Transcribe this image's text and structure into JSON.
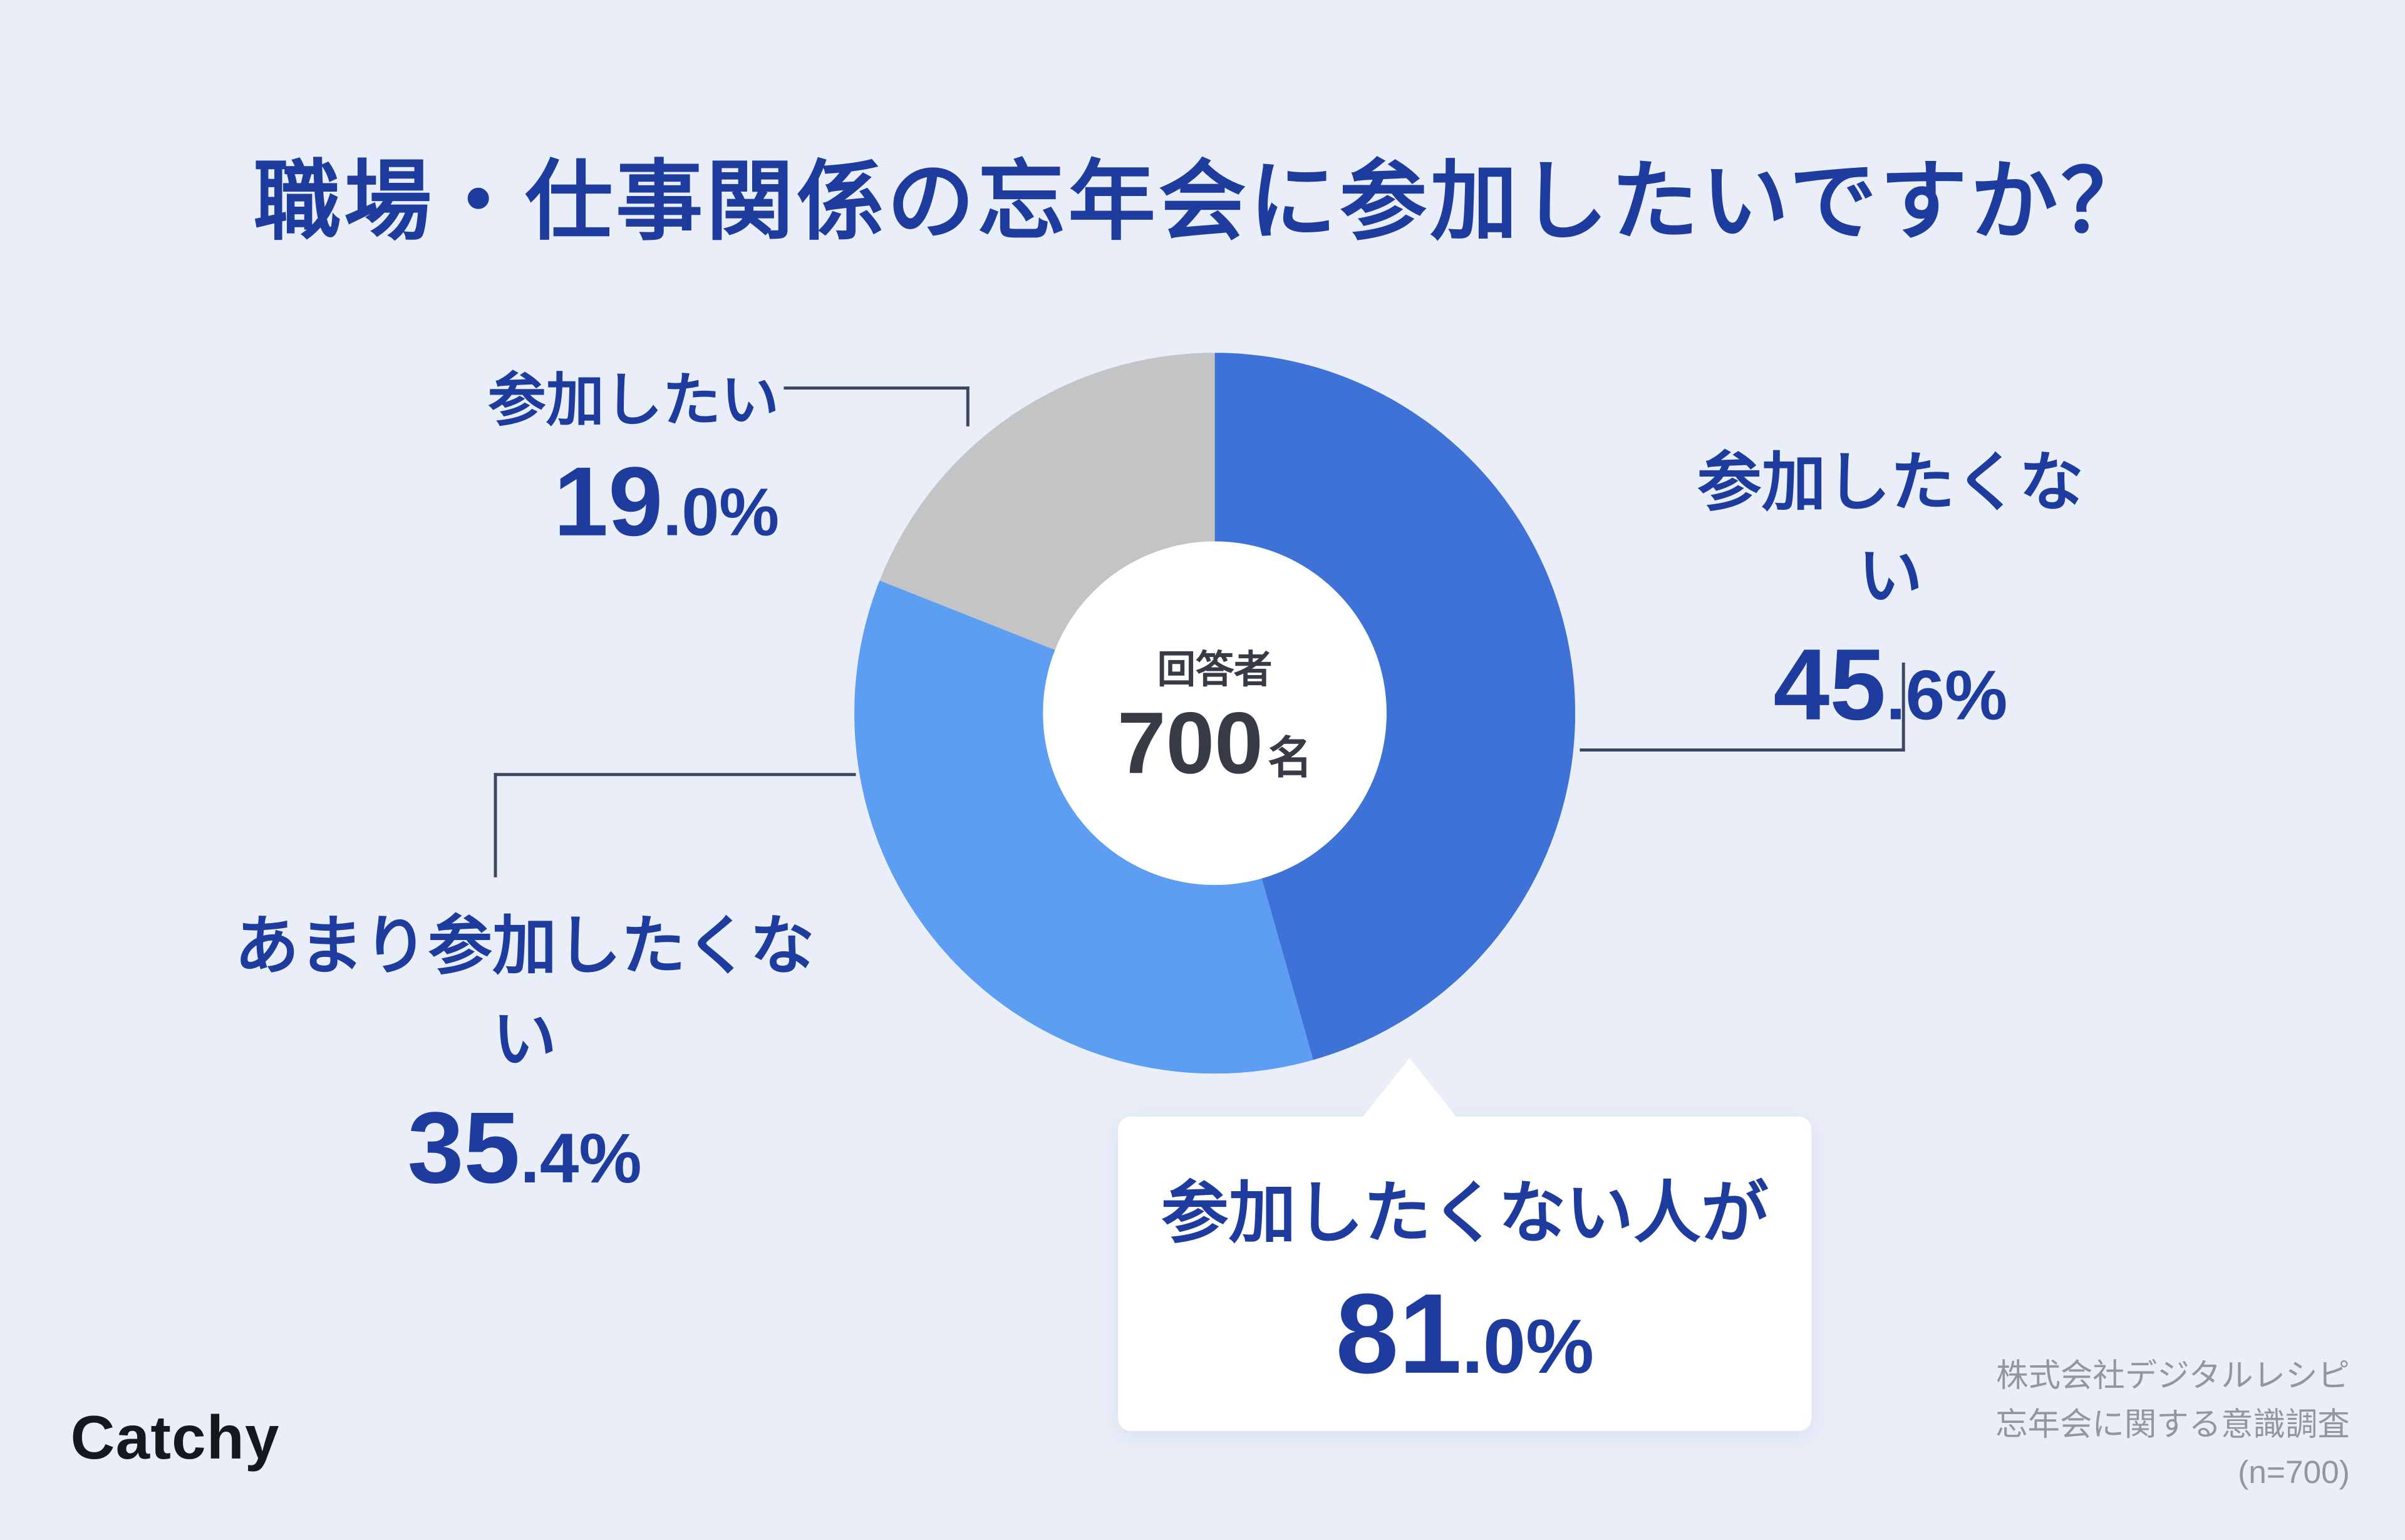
{
  "page": {
    "background_color": "#e9eef8",
    "accent_color": "#1e3c9e",
    "logo_text": "Catchy",
    "source_line1": "株式会社デジタルレシピ",
    "source_line2": "忘年会に関する意識調査",
    "source_line3": "(n=700)"
  },
  "chart_data": {
    "type": "pie",
    "subtype": "donut",
    "title": "職場・仕事関係の忘年会に参加したいですか？",
    "direction": "clockwise",
    "start_angle_deg": 0,
    "legend_position": "around-chart",
    "center": {
      "label": "回答者",
      "value": "700",
      "unit": "名"
    },
    "segments": [
      {
        "label": "参加したくない",
        "value": 45.6,
        "pct_main": "45",
        "pct_rest": ".6%",
        "color": "#3e72d7"
      },
      {
        "label": "あまり参加したくない",
        "value": 35.4,
        "pct_main": "35",
        "pct_rest": ".4%",
        "color": "#5d9ef3"
      },
      {
        "label": "参加したい",
        "value": 19.0,
        "pct_main": "19",
        "pct_rest": ".0%",
        "color": "#c3c4c6"
      }
    ],
    "annotation": {
      "text": "参加したくない人が",
      "value": 81.0,
      "pct_main": "81",
      "pct_rest": ".0%"
    }
  }
}
